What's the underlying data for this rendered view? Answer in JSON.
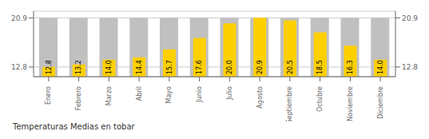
{
  "chart_data": {
    "type": "bar",
    "title": "Temperaturas Medias en tobar",
    "categories": [
      "Enero",
      "Febrero",
      "Marzo",
      "Abril",
      "Mayo",
      "Junio",
      "Julio",
      "Agosto",
      "Septiembre",
      "Octubre",
      "Noviembre",
      "Diciembre"
    ],
    "series": [
      {
        "color": "#C0C0C0",
        "values": [
          20.9,
          20.9,
          20.9,
          20.9,
          20.9,
          20.9,
          20.9,
          20.9,
          20.9,
          20.9,
          20.9,
          20.9
        ]
      },
      {
        "color": "#FFD000",
        "values": [
          12.8,
          13.2,
          14.0,
          14.4,
          15.7,
          17.6,
          20.0,
          20.9,
          20.5,
          18.5,
          16.3,
          14.0
        ],
        "value_labels": [
          "12.8",
          "13.2",
          "14.0",
          "14.4",
          "15.7",
          "17.6",
          "20.0",
          "20.9",
          "20.5",
          "18.5",
          "16.3",
          "14.0"
        ]
      }
    ],
    "ylim": [
      11.2,
      22.0
    ],
    "yticks": [
      12.8,
      20.9
    ],
    "y2lim": [
      11.2,
      22.0
    ],
    "y2ticks": [
      12.8,
      20.9
    ],
    "grid": true,
    "data_labels": true
  }
}
